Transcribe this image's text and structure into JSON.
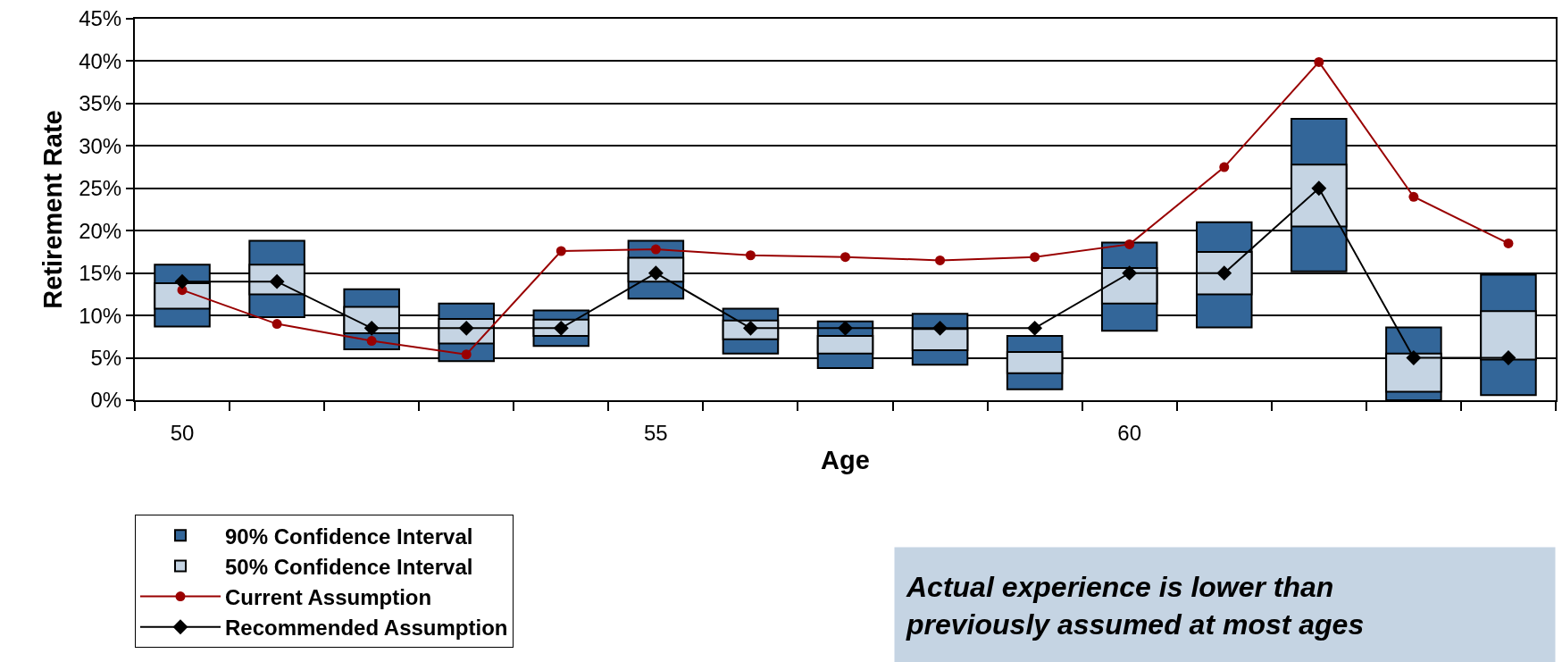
{
  "chart_data": {
    "type": "bar",
    "xlabel": "Age",
    "ylabel": "Retirement Rate",
    "categories": [
      "50",
      null,
      null,
      null,
      null,
      "55",
      null,
      null,
      null,
      null,
      "60",
      null,
      null,
      null,
      null
    ],
    "series": [
      {
        "name": "90% Confidence Interval",
        "color": "#336699",
        "base": [
          8.7,
          9.8,
          6,
          4.6,
          6.4,
          12,
          5.5,
          3.8,
          4.2,
          1.3,
          8.2,
          8.6,
          15.2,
          0,
          0.6
        ],
        "values": [
          7.3,
          9,
          7.1,
          6.8,
          4.2,
          6.8,
          5.3,
          5.5,
          6,
          6.3,
          10.4,
          12.4,
          18,
          8.6,
          14.2
        ]
      },
      {
        "name": "50% Confidence Interval",
        "color": "#c5d4e3",
        "base": [
          10.8,
          12.5,
          7.9,
          6.7,
          7.6,
          14,
          7.2,
          5.5,
          5.9,
          3.2,
          11.4,
          12.5,
          20.5,
          1,
          4.8
        ],
        "values": [
          3,
          3.5,
          3.1,
          2.9,
          1.9,
          2.8,
          2.2,
          2.1,
          2.5,
          2.5,
          4.2,
          5,
          7.3,
          4.5,
          5.7
        ]
      },
      {
        "type": "line",
        "name": "Current Assumption",
        "color": "#990000",
        "marker": "circle",
        "values": [
          13,
          9,
          7,
          5.4,
          17.6,
          17.8,
          17.1,
          16.9,
          16.5,
          16.9,
          18.4,
          27.5,
          39.9,
          24,
          18.5
        ]
      },
      {
        "type": "line",
        "name": "Recommended Assumption",
        "color": "#000000",
        "marker": "diamond",
        "values": [
          14,
          14,
          8.5,
          8.5,
          8.5,
          15,
          8.5,
          8.5,
          8.5,
          8.5,
          15,
          15,
          25,
          5,
          5
        ]
      }
    ],
    "ylim": [
      0,
      45
    ],
    "yticks": [
      {
        "value": 0,
        "label": "0%"
      },
      {
        "value": 5,
        "label": "5%"
      },
      {
        "value": 10,
        "label": "10%"
      },
      {
        "value": 15,
        "label": "15%"
      },
      {
        "value": 20,
        "label": "20%"
      },
      {
        "value": 25,
        "label": "25%"
      },
      {
        "value": 30,
        "label": "30%"
      },
      {
        "value": 35,
        "label": "35%"
      },
      {
        "value": 40,
        "label": "40%"
      },
      {
        "value": 45,
        "label": "45%"
      }
    ],
    "grid": "y",
    "legend": "bottom left",
    "line_style": "solid",
    "annotations": [
      "Actual experience is lower than\npreviously assumed at most ages"
    ]
  }
}
